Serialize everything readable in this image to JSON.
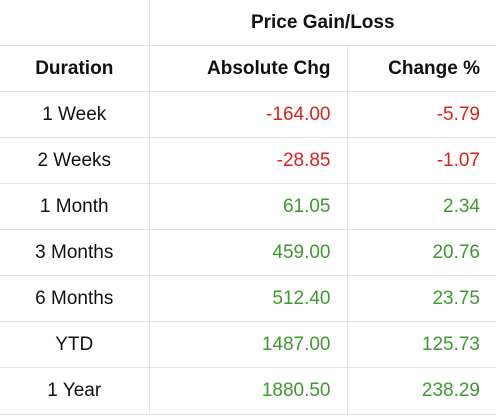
{
  "table": {
    "group_header": "Price Gain/Loss",
    "columns": [
      "Duration",
      "Absolute Chg",
      "Change %"
    ],
    "rows": [
      {
        "duration": "1 Week",
        "absolute": "-164.00",
        "percent": "-5.79",
        "trend": "negative"
      },
      {
        "duration": "2 Weeks",
        "absolute": "-28.85",
        "percent": "-1.07",
        "trend": "negative"
      },
      {
        "duration": "1 Month",
        "absolute": "61.05",
        "percent": "2.34",
        "trend": "positive"
      },
      {
        "duration": "3 Months",
        "absolute": "459.00",
        "percent": "20.76",
        "trend": "positive"
      },
      {
        "duration": "6 Months",
        "absolute": "512.40",
        "percent": "23.75",
        "trend": "positive"
      },
      {
        "duration": "YTD",
        "absolute": "1487.00",
        "percent": "125.73",
        "trend": "positive"
      },
      {
        "duration": "1 Year",
        "absolute": "1880.50",
        "percent": "238.29",
        "trend": "positive"
      }
    ]
  },
  "colors": {
    "negative": "#e0201a",
    "positive": "#3d9a2f",
    "grid": "#e2e2e2"
  }
}
